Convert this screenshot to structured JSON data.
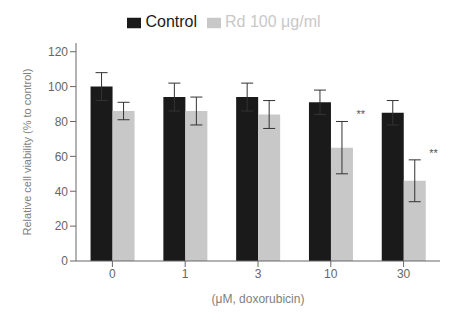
{
  "chart_data": {
    "type": "bar",
    "categories": [
      "0",
      "1",
      "3",
      "10",
      "30"
    ],
    "xlabel": "(μM, doxorubicin)",
    "ylabel": "Relative cell viability (% to control)",
    "series": [
      {
        "name": "Control",
        "color": "#1a1a1a",
        "values": [
          100,
          94,
          94,
          91,
          85
        ],
        "errors": [
          8,
          8,
          8,
          7,
          7
        ]
      },
      {
        "name": "Rd 100 μg/ml",
        "color": "#c8c8c8",
        "values": [
          86,
          86,
          84,
          65,
          46
        ],
        "errors": [
          5,
          8,
          8,
          15,
          12
        ]
      }
    ],
    "annotations": [
      {
        "text": "**",
        "series": "Rd 100 μg/ml",
        "category": "10"
      },
      {
        "text": "**",
        "series": "Rd 100 μg/ml",
        "category": "30"
      }
    ],
    "ylim": [
      0,
      125
    ],
    "yticks": [
      0,
      20,
      40,
      60,
      80,
      100,
      120
    ],
    "grid": false,
    "legend": "top"
  }
}
